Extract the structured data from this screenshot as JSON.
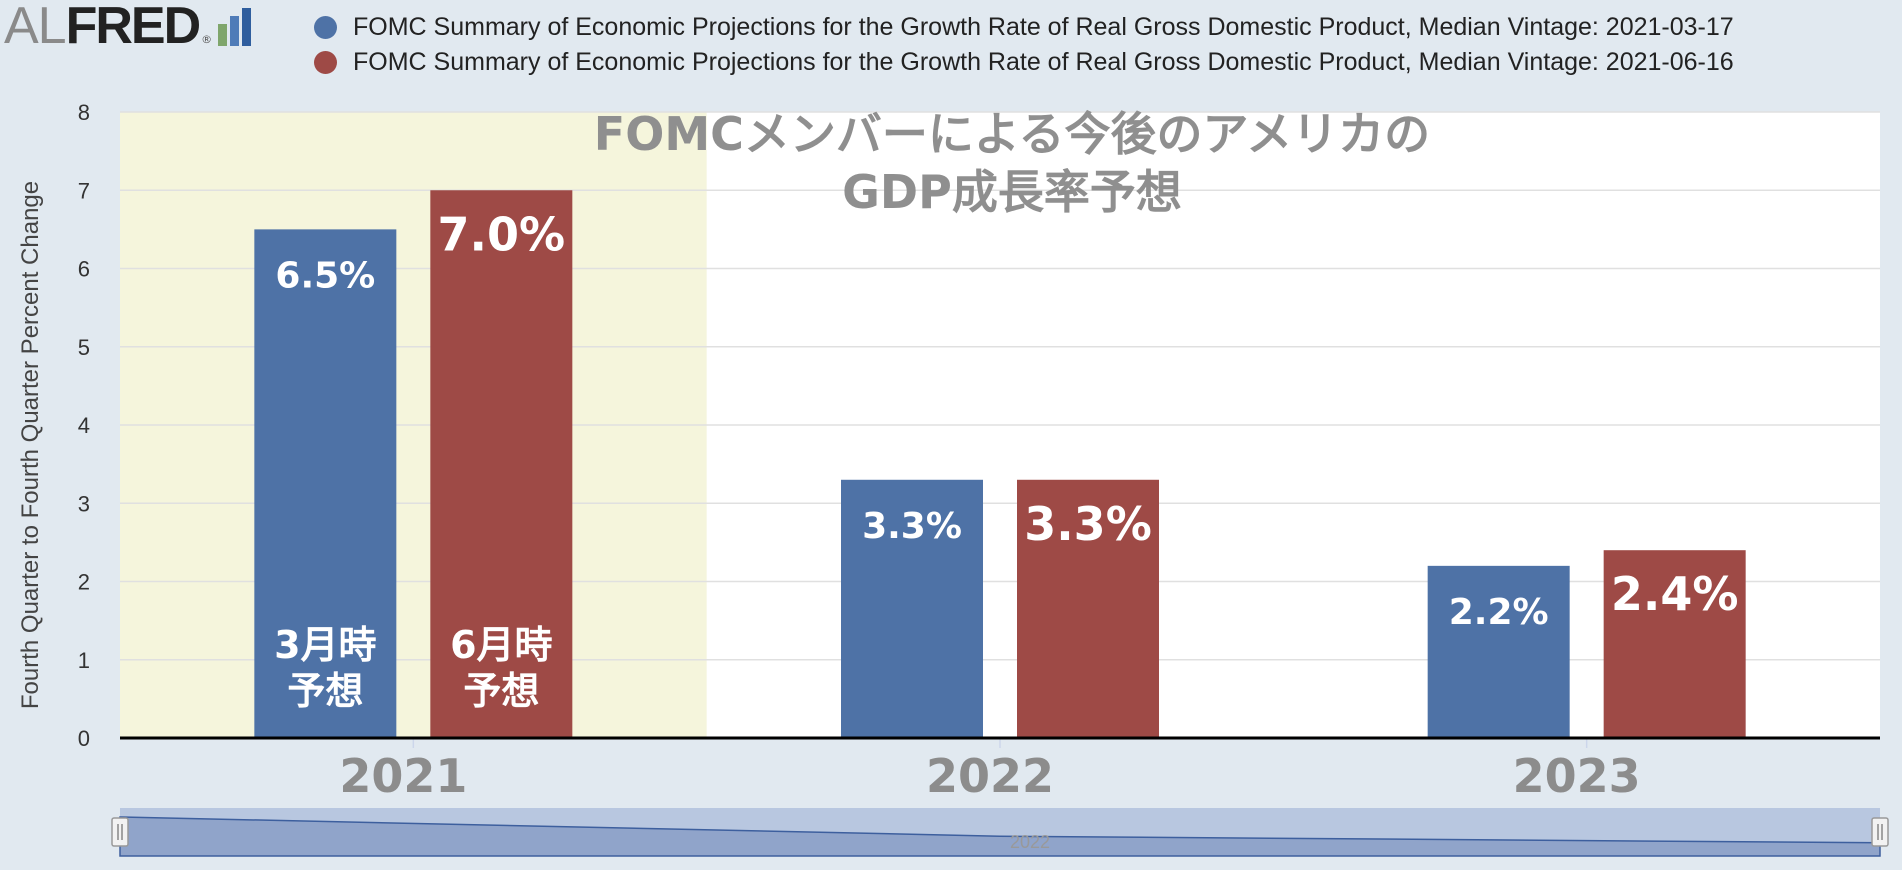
{
  "logo": {
    "part1": "AL",
    "part2": "FRED",
    "reg": "®"
  },
  "colors": {
    "series1": "#4e72a6",
    "series2": "#9e4a46",
    "highlight": "#f5f5dc",
    "plot_bg": "#ffffff",
    "navigator": "#b8c7e0",
    "logo_bars": [
      "#7fa66c",
      "#4f7cb8",
      "#2f5e9e"
    ]
  },
  "legend": [
    {
      "label": "FOMC Summary of Economic Projections for the Growth Rate of Real Gross Domestic Product, Median Vintage: 2021-03-17"
    },
    {
      "label": "FOMC Summary of Economic Projections for the Growth Rate of Real Gross Domestic Product, Median Vintage: 2021-06-16"
    }
  ],
  "navigator": {
    "label": "2022"
  },
  "chart_data": {
    "type": "bar",
    "title_lines": [
      "FOMCメンバーによる今後のアメリカの",
      "GDP成長率予想"
    ],
    "ylabel": "Fourth Quarter to Fourth Quarter Percent Change",
    "xlabel": "",
    "ylim": [
      0,
      8
    ],
    "yticks": [
      0,
      1,
      2,
      3,
      4,
      5,
      6,
      7,
      8
    ],
    "grid": true,
    "legend_position": "top",
    "categories": [
      "2021",
      "2022",
      "2023"
    ],
    "highlighted_category": "2021",
    "series": [
      {
        "name": "FOMC Summary of Economic Projections for the Growth Rate of Real Gross Domestic Product, Median Vintage: 2021-03-17",
        "values": [
          6.5,
          3.3,
          2.2
        ],
        "labels": [
          "6.5%",
          "3.3%",
          "2.2%"
        ],
        "note_lines": [
          "3月時",
          "予想"
        ]
      },
      {
        "name": "FOMC Summary of Economic Projections for the Growth Rate of Real Gross Domestic Product, Median Vintage: 2021-06-16",
        "values": [
          7.0,
          3.3,
          2.4
        ],
        "labels": [
          "7.0%",
          "3.3%",
          "2.4%"
        ],
        "note_lines": [
          "6月時",
          "予想"
        ]
      }
    ]
  }
}
